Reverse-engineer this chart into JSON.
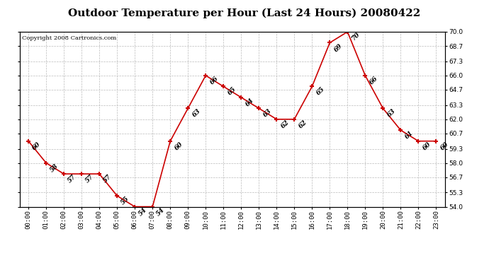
{
  "title": "Outdoor Temperature per Hour (Last 24 Hours) 20080422",
  "copyright": "Copyright 2008 Cartronics.com",
  "hours": [
    "00:00",
    "01:00",
    "02:00",
    "03:00",
    "04:00",
    "05:00",
    "06:00",
    "07:00",
    "08:00",
    "09:00",
    "10:00",
    "11:00",
    "12:00",
    "13:00",
    "14:00",
    "15:00",
    "16:00",
    "17:00",
    "18:00",
    "19:00",
    "20:00",
    "21:00",
    "22:00",
    "23:00"
  ],
  "temps": [
    60,
    58,
    57,
    57,
    57,
    55,
    54,
    54,
    60,
    63,
    66,
    65,
    64,
    63,
    62,
    62,
    65,
    69,
    70,
    66,
    63,
    61,
    60,
    60
  ],
  "line_color": "#cc0000",
  "marker_color": "#cc0000",
  "grid_color": "#bbbbbb",
  "background_color": "#ffffff",
  "plot_bg_color": "#ffffff",
  "ylim_min": 54.0,
  "ylim_max": 70.0,
  "yticks": [
    54.0,
    55.3,
    56.7,
    58.0,
    59.3,
    60.7,
    62.0,
    63.3,
    64.7,
    66.0,
    67.3,
    68.7,
    70.0
  ],
  "ytick_labels": [
    "54.0",
    "55.3",
    "56.7",
    "58.0",
    "59.3",
    "60.7",
    "62.0",
    "63.3",
    "64.7",
    "66.0",
    "67.3",
    "68.7",
    "70.0"
  ],
  "title_fontsize": 11,
  "label_fontsize": 6.5,
  "copyright_fontsize": 6,
  "annotation_fontsize": 6.5
}
